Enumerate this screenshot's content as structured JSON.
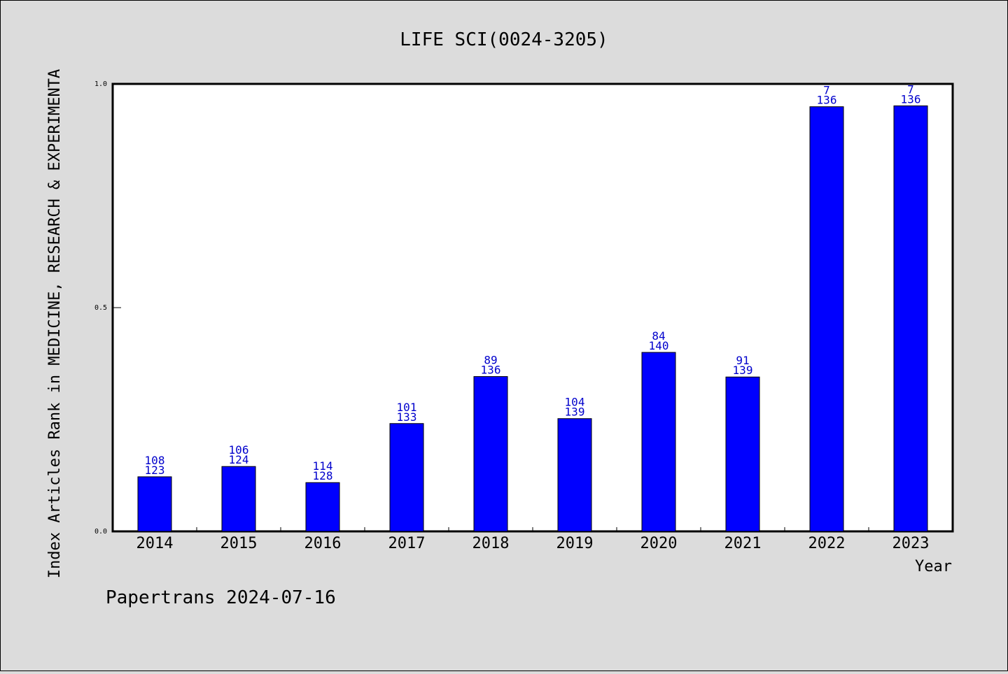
{
  "chart_data": {
    "type": "bar",
    "title": "LIFE SCI(0024-3205)",
    "xlabel": "Year",
    "ylabel": "Index Articles Rank in MEDICINE, RESEARCH & EXPERIMENTA",
    "categories": [
      "2014",
      "2015",
      "2016",
      "2017",
      "2018",
      "2019",
      "2020",
      "2021",
      "2022",
      "2023"
    ],
    "values": [
      0.122,
      0.145,
      0.109,
      0.241,
      0.346,
      0.252,
      0.4,
      0.345,
      0.949,
      0.951
    ],
    "rank": [
      "108",
      "106",
      "114",
      "101",
      "89",
      "104",
      "84",
      "91",
      "7",
      "7"
    ],
    "total": [
      "123",
      "124",
      "128",
      "133",
      "136",
      "139",
      "140",
      "139",
      "136",
      "136"
    ],
    "ylim": [
      0,
      1.0
    ],
    "yticks": [
      {
        "value": 0.0,
        "label": "0.0"
      },
      {
        "value": 0.5,
        "label": "0.5"
      },
      {
        "value": 1.0,
        "label": "1.0"
      }
    ],
    "grid": false,
    "bar_color": "#0000ff",
    "label_color": "#0000cc"
  },
  "footer": "Papertrans 2024-07-16"
}
